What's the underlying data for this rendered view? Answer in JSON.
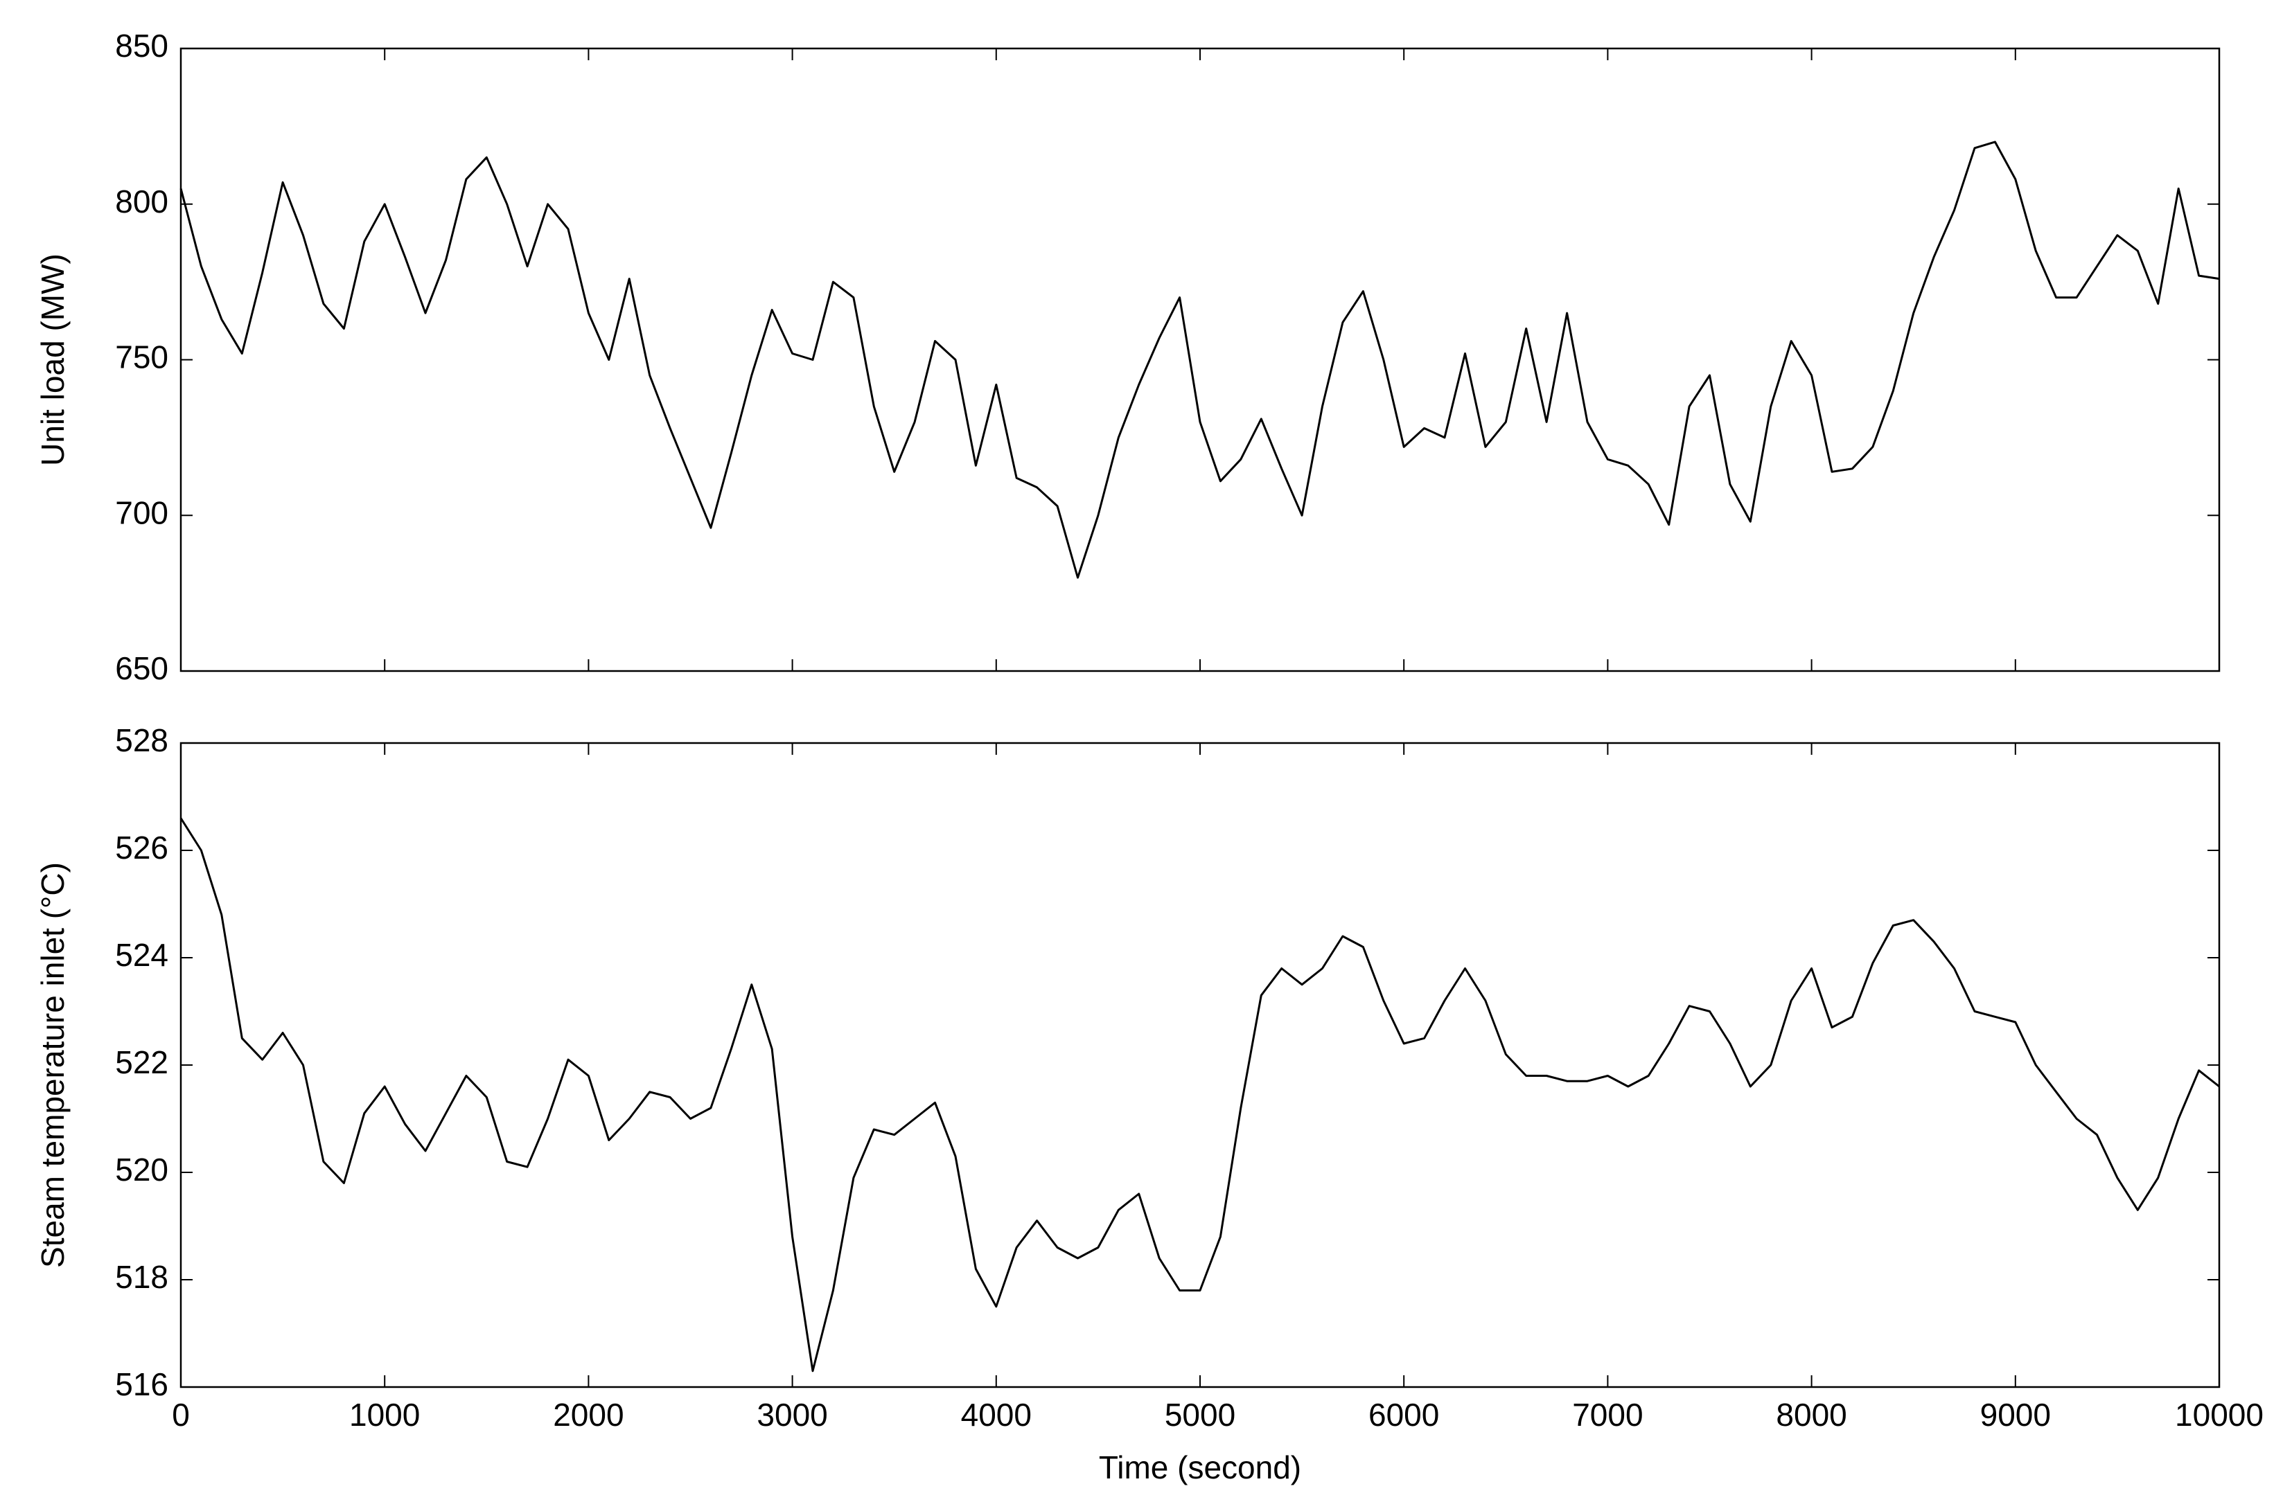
{
  "chart_data": [
    {
      "type": "line",
      "ylabel": "Unit load (MW)",
      "x": [
        0,
        100,
        200,
        300,
        400,
        500,
        600,
        700,
        800,
        900,
        1000,
        1100,
        1200,
        1300,
        1400,
        1500,
        1600,
        1700,
        1800,
        1900,
        2000,
        2100,
        2200,
        2300,
        2400,
        2500,
        2600,
        2700,
        2800,
        2900,
        3000,
        3100,
        3200,
        3300,
        3400,
        3500,
        3600,
        3700,
        3800,
        3900,
        4000,
        4100,
        4200,
        4300,
        4400,
        4500,
        4600,
        4700,
        4800,
        4900,
        5000,
        5100,
        5200,
        5300,
        5400,
        5500,
        5600,
        5700,
        5800,
        5900,
        6000,
        6100,
        6200,
        6300,
        6400,
        6500,
        6600,
        6700,
        6800,
        6900,
        7000,
        7100,
        7200,
        7300,
        7400,
        7500,
        7600,
        7700,
        7800,
        7900,
        8000,
        8100,
        8200,
        8300,
        8400,
        8500,
        8600,
        8700,
        8800,
        8900,
        9000,
        9100,
        9200,
        9300,
        9400,
        9500,
        9600,
        9700,
        9800,
        9900,
        10000
      ],
      "series": [
        {
          "color": "#000000",
          "values": [
            805,
            780,
            763,
            752,
            778,
            807,
            790,
            768,
            760,
            788,
            800,
            783,
            765,
            782,
            808,
            815,
            800,
            780,
            800,
            792,
            765,
            750,
            776,
            745,
            728,
            712,
            696,
            720,
            745,
            766,
            752,
            750,
            775,
            770,
            735,
            714,
            730,
            756,
            750,
            716,
            742,
            712,
            709,
            703,
            680,
            700,
            725,
            742,
            757,
            770,
            730,
            711,
            718,
            731,
            715,
            700,
            735,
            762,
            772,
            750,
            722,
            728,
            725,
            752,
            722,
            730,
            760,
            730,
            765,
            730,
            718,
            716,
            710,
            697,
            735,
            745,
            710,
            698,
            735,
            756,
            745,
            714,
            715,
            722,
            740,
            765,
            783,
            798,
            818,
            820,
            808,
            785,
            770,
            770,
            780,
            790,
            785,
            768,
            805,
            777,
            776
          ]
        }
      ],
      "xlim": [
        0,
        10000
      ],
      "ylim": [
        650,
        850
      ],
      "yticks": [
        650,
        700,
        750,
        800,
        850
      ]
    },
    {
      "type": "line",
      "xlabel": "Time (second)",
      "ylabel": "Steam temperature inlet (°C)",
      "x": [
        0,
        100,
        200,
        300,
        400,
        500,
        600,
        700,
        800,
        900,
        1000,
        1100,
        1200,
        1300,
        1400,
        1500,
        1600,
        1700,
        1800,
        1900,
        2000,
        2100,
        2200,
        2300,
        2400,
        2500,
        2600,
        2700,
        2800,
        2900,
        3000,
        3100,
        3200,
        3300,
        3400,
        3500,
        3600,
        3700,
        3800,
        3900,
        4000,
        4100,
        4200,
        4300,
        4400,
        4500,
        4600,
        4700,
        4800,
        4900,
        5000,
        5100,
        5200,
        5300,
        5400,
        5500,
        5600,
        5700,
        5800,
        5900,
        6000,
        6100,
        6200,
        6300,
        6400,
        6500,
        6600,
        6700,
        6800,
        6900,
        7000,
        7100,
        7200,
        7300,
        7400,
        7500,
        7600,
        7700,
        7800,
        7900,
        8000,
        8100,
        8200,
        8300,
        8400,
        8500,
        8600,
        8700,
        8800,
        8900,
        9000,
        9100,
        9200,
        9300,
        9400,
        9500,
        9600,
        9700,
        9800,
        9900,
        10000
      ],
      "series": [
        {
          "color": "#000000",
          "values": [
            526.6,
            526.0,
            524.8,
            522.5,
            522.1,
            522.6,
            522.0,
            520.2,
            519.8,
            521.1,
            521.6,
            520.9,
            520.4,
            521.1,
            521.8,
            521.4,
            520.2,
            520.1,
            521.0,
            522.1,
            521.8,
            520.6,
            521.0,
            521.5,
            521.4,
            521.0,
            521.2,
            522.3,
            523.5,
            522.3,
            518.8,
            516.3,
            517.8,
            519.9,
            520.8,
            520.7,
            521.0,
            521.3,
            520.3,
            518.2,
            517.5,
            518.6,
            519.1,
            518.6,
            518.4,
            518.6,
            519.3,
            519.6,
            518.4,
            517.8,
            517.8,
            518.8,
            521.2,
            523.3,
            523.8,
            523.5,
            523.8,
            524.4,
            524.2,
            523.2,
            522.4,
            522.5,
            523.2,
            523.8,
            523.2,
            522.2,
            521.8,
            521.8,
            521.7,
            521.7,
            521.8,
            521.6,
            521.8,
            522.4,
            523.1,
            523.0,
            522.4,
            521.6,
            522.0,
            523.2,
            523.8,
            522.7,
            522.9,
            523.9,
            524.6,
            524.7,
            524.3,
            523.8,
            523.0,
            522.9,
            522.8,
            522.0,
            521.5,
            521.0,
            520.7,
            519.9,
            519.3,
            519.9,
            521.0,
            521.9,
            521.6
          ]
        }
      ],
      "xlim": [
        0,
        10000
      ],
      "xticks": [
        0,
        1000,
        2000,
        3000,
        4000,
        5000,
        6000,
        7000,
        8000,
        9000,
        10000
      ],
      "ylim": [
        516,
        528
      ],
      "yticks": [
        516,
        518,
        520,
        522,
        524,
        526,
        528
      ]
    }
  ]
}
